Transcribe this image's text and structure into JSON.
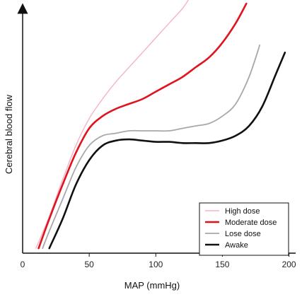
{
  "chart_data": {
    "type": "line",
    "xlabel": "MAP (mmHg)",
    "ylabel": "Cerebral blood flow",
    "xlim": [
      0,
      205
    ],
    "ylim": [
      0,
      100
    ],
    "xticks": [
      0,
      50,
      100,
      150,
      200
    ],
    "xtick_labels": [
      "0",
      "50",
      "100",
      "150",
      "200"
    ],
    "y_tick_labels_shown": false,
    "grid": false,
    "legend_position": "bottom-right",
    "series": [
      {
        "name": "High dose",
        "color": "#f4b3c8",
        "x": [
          10,
          20,
          30,
          40,
          50,
          60,
          70,
          80,
          90,
          100,
          110,
          120,
          125
        ],
        "y": [
          2,
          15,
          30,
          44,
          55,
          63,
          70,
          76,
          82,
          88,
          94,
          100,
          104
        ]
      },
      {
        "name": "Moderate dose",
        "color": "#e0141e",
        "x": [
          12,
          20,
          30,
          40,
          50,
          60,
          70,
          80,
          90,
          100,
          110,
          120,
          130,
          140,
          150,
          160,
          168
        ],
        "y": [
          2,
          14,
          28,
          41,
          51,
          56,
          59,
          61,
          63,
          66,
          69,
          72,
          76,
          80,
          86,
          94,
          102
        ]
      },
      {
        "name": "Lose dose",
        "color": "#a8a8a8",
        "x": [
          15,
          20,
          30,
          40,
          50,
          60,
          70,
          80,
          90,
          100,
          110,
          120,
          130,
          140,
          150,
          160,
          170,
          178
        ],
        "y": [
          2,
          9,
          22,
          35,
          44,
          48,
          49,
          50,
          50,
          50,
          50,
          51,
          52,
          53,
          56,
          61,
          72,
          85
        ]
      },
      {
        "name": "Awake",
        "color": "#111111",
        "x": [
          20,
          30,
          40,
          50,
          60,
          70,
          80,
          90,
          100,
          110,
          120,
          130,
          140,
          150,
          160,
          170,
          180,
          190,
          197
        ],
        "y": [
          2,
          14,
          28,
          38,
          44,
          46,
          46.5,
          46,
          45.5,
          45.5,
          45,
          45,
          45,
          46,
          48,
          52,
          60,
          73,
          82
        ]
      }
    ]
  }
}
